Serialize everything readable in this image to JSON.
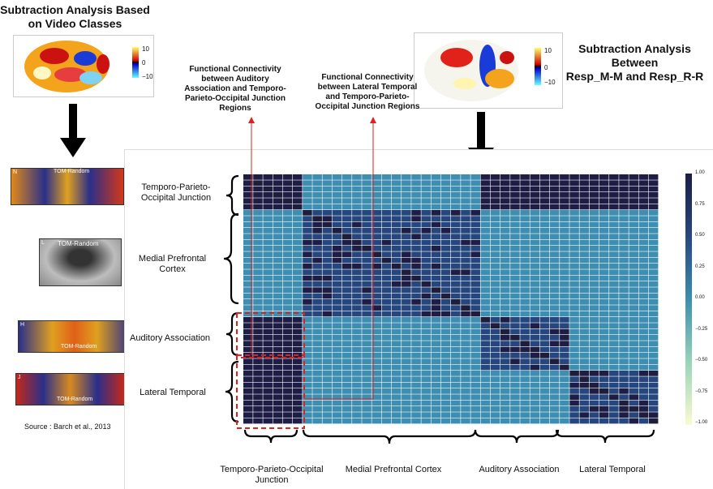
{
  "header": {
    "left_title": "Subtraction Analysis Based on Video Classes",
    "right_title_1": "Subtraction Analysis",
    "right_title_2": "Between",
    "right_title_3": "Resp_M-M and Resp_R-R"
  },
  "annotations": {
    "fc_auditory": "Functional Connectivity between Auditory Association and Temporo-Parieto-Occipital Junction Regions",
    "fc_lateral": "Functional Connectivity between Lateral Temporal and Temporo-Parieto-Occipital Junction Regions"
  },
  "brain_scales": {
    "left": [
      "10",
      "0",
      "−10"
    ],
    "right": [
      "10",
      "0",
      "−10"
    ]
  },
  "strips": [
    {
      "letter": "N",
      "caption": "TOM-Random"
    },
    {
      "letter": "L",
      "caption": "TOM-Random"
    },
    {
      "letter": "H",
      "caption": "TOM-Random"
    },
    {
      "letter": "J",
      "caption": "TOM-Random"
    }
  ],
  "source": "Source : Barch et al., 2013",
  "regions_y": {
    "tpoj": "Temporo-Parieto- Occipital Junction",
    "mpfc": "Medial Prefrontal Cortex",
    "aa": "Auditory Association",
    "lt": "Lateral Temporal"
  },
  "regions_x": {
    "tpoj": "Temporo-Parieto-Occipital Junction",
    "mpfc": "Medial Prefrontal Cortex",
    "aa": "Auditory Association",
    "lt": "Lateral Temporal"
  },
  "colorbar": {
    "ticks": [
      "1.00",
      "0.75",
      "0.50",
      "0.25",
      "0.00",
      "−0.25",
      "−0.50",
      "−0.75",
      "−1.00"
    ]
  },
  "colors": {
    "arrow": "#000000",
    "highlight": "#dd2222",
    "low": "#ffffd9",
    "mid": "#41b6c4",
    "high": "#081d58"
  }
}
